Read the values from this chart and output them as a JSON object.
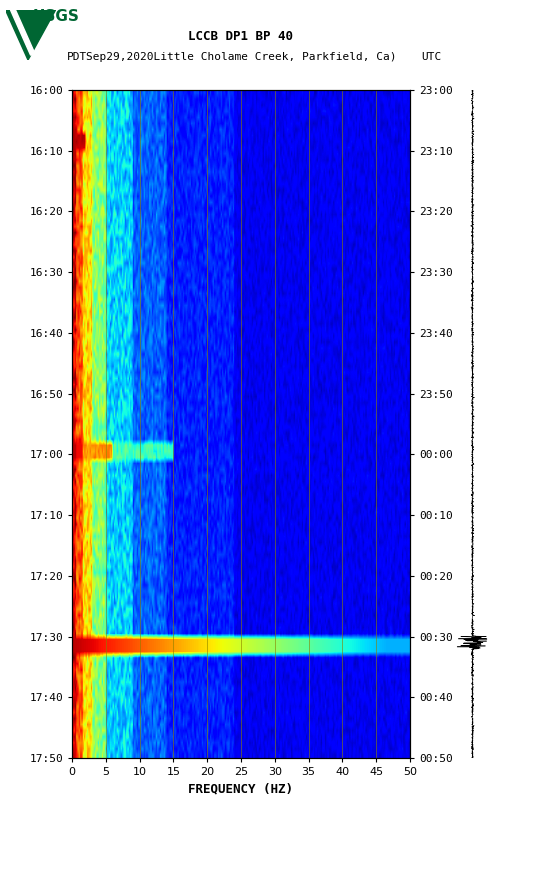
{
  "title_line1": "LCCB DP1 BP 40",
  "title_line2_left": "PDT",
  "title_line2_center": "  Sep29,2020Little Cholame Creek, Parkfield, Ca)",
  "title_line2_right": "UTC",
  "freq_min": 0,
  "freq_max": 50,
  "freq_ticks": [
    0,
    5,
    10,
    15,
    20,
    25,
    30,
    35,
    40,
    45,
    50
  ],
  "freq_gridlines": [
    5,
    10,
    15,
    20,
    25,
    30,
    35,
    40,
    45
  ],
  "time_labels_left": [
    "16:00",
    "16:10",
    "16:20",
    "16:30",
    "16:40",
    "16:50",
    "17:00",
    "17:10",
    "17:20",
    "17:30",
    "17:40",
    "17:50"
  ],
  "time_labels_right": [
    "23:00",
    "23:10",
    "23:20",
    "23:30",
    "23:40",
    "23:50",
    "00:00",
    "00:10",
    "00:20",
    "00:30",
    "00:40",
    "00:50"
  ],
  "n_time_steps": 110,
  "n_freq_bins": 250,
  "xlabel": "FREQUENCY (HZ)",
  "background_color": "#ffffff",
  "colormap": "jet",
  "usgs_logo_color": "#006633",
  "grid_color": "#8B8000",
  "grid_alpha": 0.7,
  "grid_lw": 0.6
}
